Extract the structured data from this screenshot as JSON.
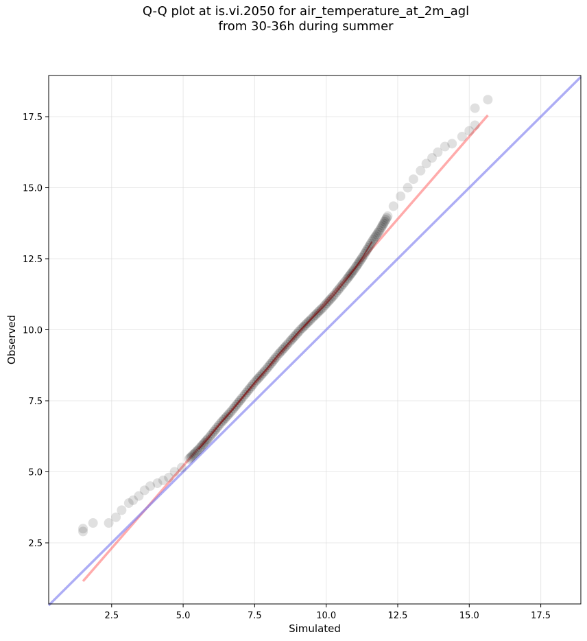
{
  "chart_data": {
    "type": "scatter",
    "title_line1": "Q-Q plot at is.vi.2050 for air_temperature_at_2m_agl",
    "title_line2": "from 30-36h during summer",
    "xlabel": "Simulated",
    "ylabel": "Observed",
    "xlim": [
      0.3,
      18.9
    ],
    "ylim": [
      0.35,
      18.95
    ],
    "xticks": [
      2.5,
      5.0,
      7.5,
      10.0,
      12.5,
      15.0,
      17.5
    ],
    "yticks": [
      2.5,
      5.0,
      7.5,
      10.0,
      12.5,
      15.0,
      17.5
    ],
    "xtick_labels": [
      "2.5",
      "5.0",
      "7.5",
      "10.0",
      "12.5",
      "15.0",
      "17.5"
    ],
    "ytick_labels": [
      "2.5",
      "5.0",
      "7.5",
      "10.0",
      "12.5",
      "15.0",
      "17.5"
    ],
    "grid": true,
    "series": [
      {
        "kind": "quantiles",
        "color": "#000000",
        "points": [
          [
            1.5,
            2.9
          ],
          [
            1.5,
            3.0
          ],
          [
            1.85,
            3.2
          ],
          [
            2.4,
            3.2
          ],
          [
            2.65,
            3.4
          ],
          [
            2.85,
            3.65
          ],
          [
            3.1,
            3.9
          ],
          [
            3.25,
            4.0
          ],
          [
            3.45,
            4.15
          ],
          [
            3.65,
            4.35
          ],
          [
            3.85,
            4.5
          ],
          [
            4.1,
            4.6
          ],
          [
            4.3,
            4.7
          ],
          [
            4.5,
            4.8
          ],
          [
            4.7,
            5.0
          ],
          [
            4.95,
            5.15
          ],
          [
            5.2,
            5.45
          ],
          [
            5.55,
            5.8
          ],
          [
            5.9,
            6.2
          ],
          [
            6.3,
            6.7
          ],
          [
            6.7,
            7.15
          ],
          [
            7.1,
            7.65
          ],
          [
            7.5,
            8.15
          ],
          [
            7.9,
            8.6
          ],
          [
            8.3,
            9.1
          ],
          [
            8.7,
            9.55
          ],
          [
            9.1,
            10.0
          ],
          [
            9.5,
            10.4
          ],
          [
            9.9,
            10.8
          ],
          [
            10.3,
            11.25
          ],
          [
            10.7,
            11.75
          ],
          [
            11.0,
            12.15
          ],
          [
            11.3,
            12.6
          ],
          [
            11.6,
            13.1
          ],
          [
            11.9,
            13.55
          ],
          [
            12.15,
            14.0
          ],
          [
            12.35,
            14.35
          ],
          [
            12.6,
            14.7
          ],
          [
            12.85,
            15.0
          ],
          [
            13.05,
            15.3
          ],
          [
            13.3,
            15.6
          ],
          [
            13.5,
            15.85
          ],
          [
            13.7,
            16.05
          ],
          [
            13.9,
            16.25
          ],
          [
            14.15,
            16.45
          ],
          [
            14.4,
            16.55
          ],
          [
            14.75,
            16.8
          ],
          [
            15.0,
            17.0
          ],
          [
            15.2,
            17.2
          ],
          [
            15.2,
            17.8
          ],
          [
            15.65,
            18.1
          ]
        ]
      },
      {
        "kind": "fit-line",
        "color": "#ff6666",
        "from": [
          1.5,
          1.15
        ],
        "to": [
          15.65,
          17.55
        ]
      },
      {
        "kind": "identity-line",
        "color": "#7777ee",
        "from": [
          0.3,
          0.3
        ],
        "to": [
          18.9,
          18.9
        ]
      }
    ]
  }
}
